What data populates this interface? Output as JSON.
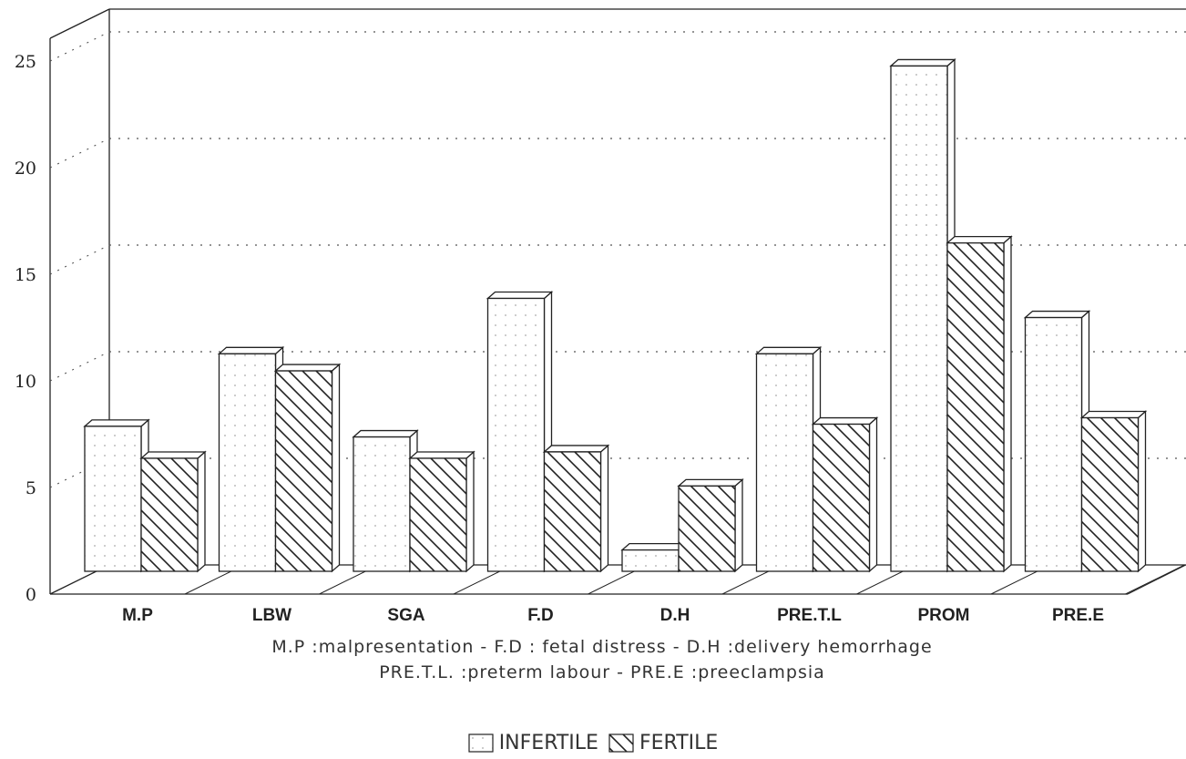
{
  "chart_data": {
    "type": "bar",
    "title": "",
    "xlabel": "",
    "ylabel": "",
    "ylim": [
      0,
      25
    ],
    "yticks": [
      "0",
      "5",
      "10",
      "15",
      "20",
      "25"
    ],
    "grid": true,
    "three_d": true,
    "categories": [
      "M.P",
      "LBW",
      "SGA",
      "F.D",
      "D.H",
      "PRE.T.L",
      "PROM",
      "PRE.E"
    ],
    "series": [
      {
        "name": "INFERTILE",
        "pattern": "dotted",
        "values": [
          6.8,
          10.2,
          6.3,
          12.8,
          1.0,
          10.2,
          23.7,
          11.9
        ]
      },
      {
        "name": "FERTILE",
        "pattern": "hatched",
        "values": [
          5.3,
          9.4,
          5.3,
          5.6,
          4.0,
          6.9,
          15.4,
          7.2
        ]
      }
    ],
    "legend_position": "bottom-center",
    "notes": [
      "M.P :malpresentation - F.D : fetal distress - D.H :delivery hemorrhage",
      "PRE.T.L. :preterm labour - PRE.E :preeclampsia"
    ]
  },
  "colors": {
    "ink": "#222222",
    "bar_face": "#ffffff",
    "dots": "#b5b5b5"
  }
}
